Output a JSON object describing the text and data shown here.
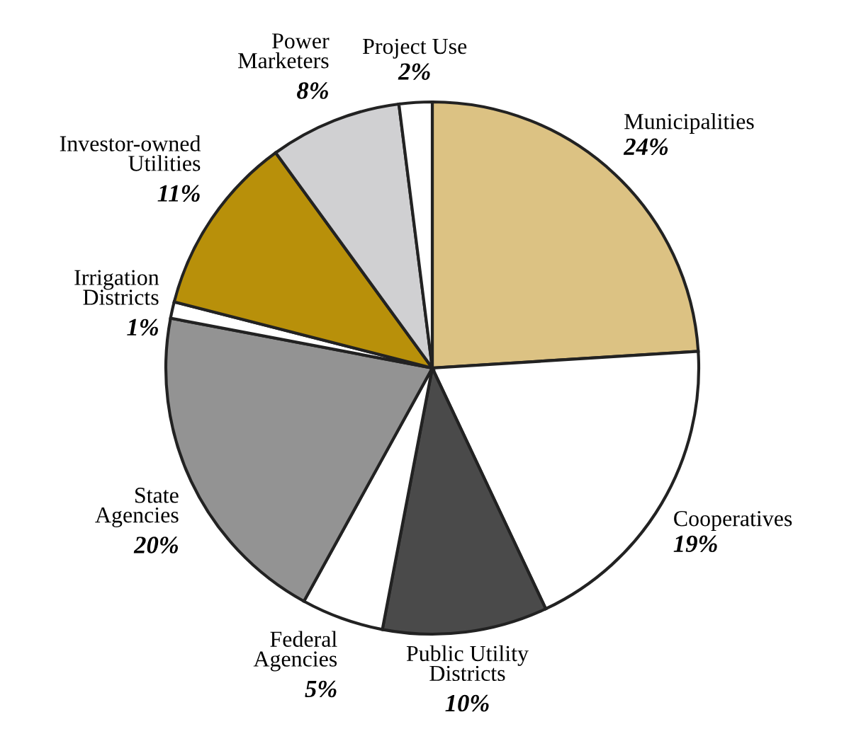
{
  "chart_data": {
    "type": "pie",
    "categories": [
      "Municipalities",
      "Cooperatives",
      "Public Utility\nDistricts",
      "Federal\nAgencies",
      "State\nAgencies",
      "Irrigation\nDistricts",
      "Investor-owned\nUtilities",
      "Power\nMarketers",
      "Project Use"
    ],
    "values": [
      24,
      19,
      10,
      5,
      20,
      1,
      11,
      8,
      2
    ],
    "value_labels": [
      "24%",
      "19%",
      "10%",
      "5%",
      "20%",
      "1%",
      "11%",
      "8%",
      "2%"
    ],
    "colors": [
      "#dcc283",
      "#ffffff",
      "#4a4a4a",
      "#ffffff",
      "#939393",
      "#ffffff",
      "#b8900a",
      "#d0d0d2",
      "#ffffff"
    ],
    "legend": false
  }
}
